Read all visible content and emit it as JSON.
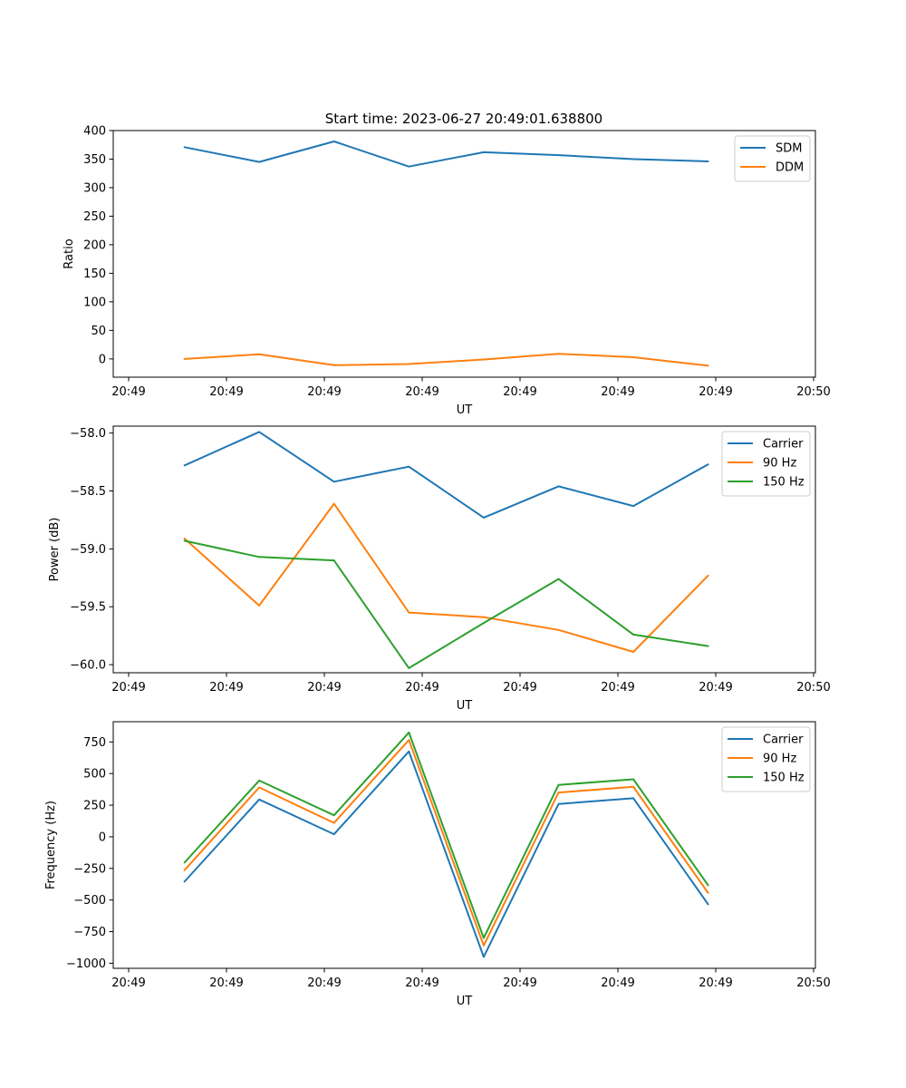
{
  "figure": {
    "title": "Start time: 2023-06-27 20:49:01.638800"
  },
  "chart_data": [
    {
      "type": "line",
      "title": "Start time: 2023-06-27 20:49:01.638800",
      "xlabel": "UT",
      "ylabel": "Ratio",
      "x_tick_labels": [
        "20:49",
        "20:49",
        "20:49",
        "20:49",
        "20:49",
        "20:49",
        "20:49",
        "20:50"
      ],
      "y_ticks": [
        0,
        50,
        100,
        150,
        200,
        250,
        300,
        350,
        400
      ],
      "y_tick_labels": [
        "0",
        "50",
        "100",
        "150",
        "200",
        "250",
        "300",
        "350",
        "400"
      ],
      "ylim": [
        -32,
        400
      ],
      "grid": false,
      "legend_position": "upper right",
      "series": [
        {
          "name": "SDM",
          "color": "#1f77b4",
          "values": [
            371,
            345,
            381,
            337,
            362,
            357,
            350,
            346
          ]
        },
        {
          "name": "DDM",
          "color": "#ff7f0e",
          "values": [
            0,
            8,
            -11,
            -9,
            -1,
            9,
            3,
            -12
          ]
        }
      ]
    },
    {
      "type": "line",
      "title": "",
      "xlabel": "UT",
      "ylabel": "Power (dB)",
      "x_tick_labels": [
        "20:49",
        "20:49",
        "20:49",
        "20:49",
        "20:49",
        "20:49",
        "20:49",
        "20:50"
      ],
      "y_ticks": [
        -58.0,
        -58.5,
        -59.0,
        -59.5,
        -60.0
      ],
      "y_tick_labels": [
        "−58.0",
        "−58.5",
        "−59.0",
        "−59.5",
        "−60.0"
      ],
      "ylim": [
        -60.07,
        -57.94
      ],
      "grid": false,
      "legend_position": "upper right",
      "series": [
        {
          "name": "Carrier",
          "color": "#1f77b4",
          "values": [
            -58.28,
            -57.99,
            -58.42,
            -58.29,
            -58.73,
            -58.46,
            -58.63,
            -58.27
          ]
        },
        {
          "name": "90 Hz",
          "color": "#ff7f0e",
          "values": [
            -58.91,
            -59.49,
            -58.61,
            -59.55,
            -59.59,
            -59.7,
            -59.89,
            -59.23
          ]
        },
        {
          "name": "150 Hz",
          "color": "#2ca02c",
          "values": [
            -58.93,
            -59.07,
            -59.1,
            -60.03,
            -59.64,
            -59.26,
            -59.74,
            -59.84
          ]
        }
      ]
    },
    {
      "type": "line",
      "title": "",
      "xlabel": "UT",
      "ylabel": "Frequency (Hz)",
      "x_tick_labels": [
        "20:49",
        "20:49",
        "20:49",
        "20:49",
        "20:49",
        "20:49",
        "20:49",
        "20:50"
      ],
      "y_ticks": [
        750,
        500,
        250,
        0,
        -250,
        -500,
        -750,
        -1000
      ],
      "y_tick_labels": [
        "750",
        "500",
        "250",
        "0",
        "−250",
        "−500",
        "−750",
        "−1000"
      ],
      "ylim": [
        -1040,
        910
      ],
      "grid": false,
      "legend_position": "upper right",
      "series": [
        {
          "name": "Carrier",
          "color": "#1f77b4",
          "values": [
            -355,
            295,
            20,
            675,
            -950,
            260,
            305,
            -535
          ]
        },
        {
          "name": "90 Hz",
          "color": "#ff7f0e",
          "values": [
            -265,
            390,
            110,
            765,
            -860,
            350,
            395,
            -445
          ]
        },
        {
          "name": "150 Hz",
          "color": "#2ca02c",
          "values": [
            -205,
            445,
            170,
            825,
            -800,
            410,
            455,
            -385
          ]
        }
      ]
    }
  ]
}
